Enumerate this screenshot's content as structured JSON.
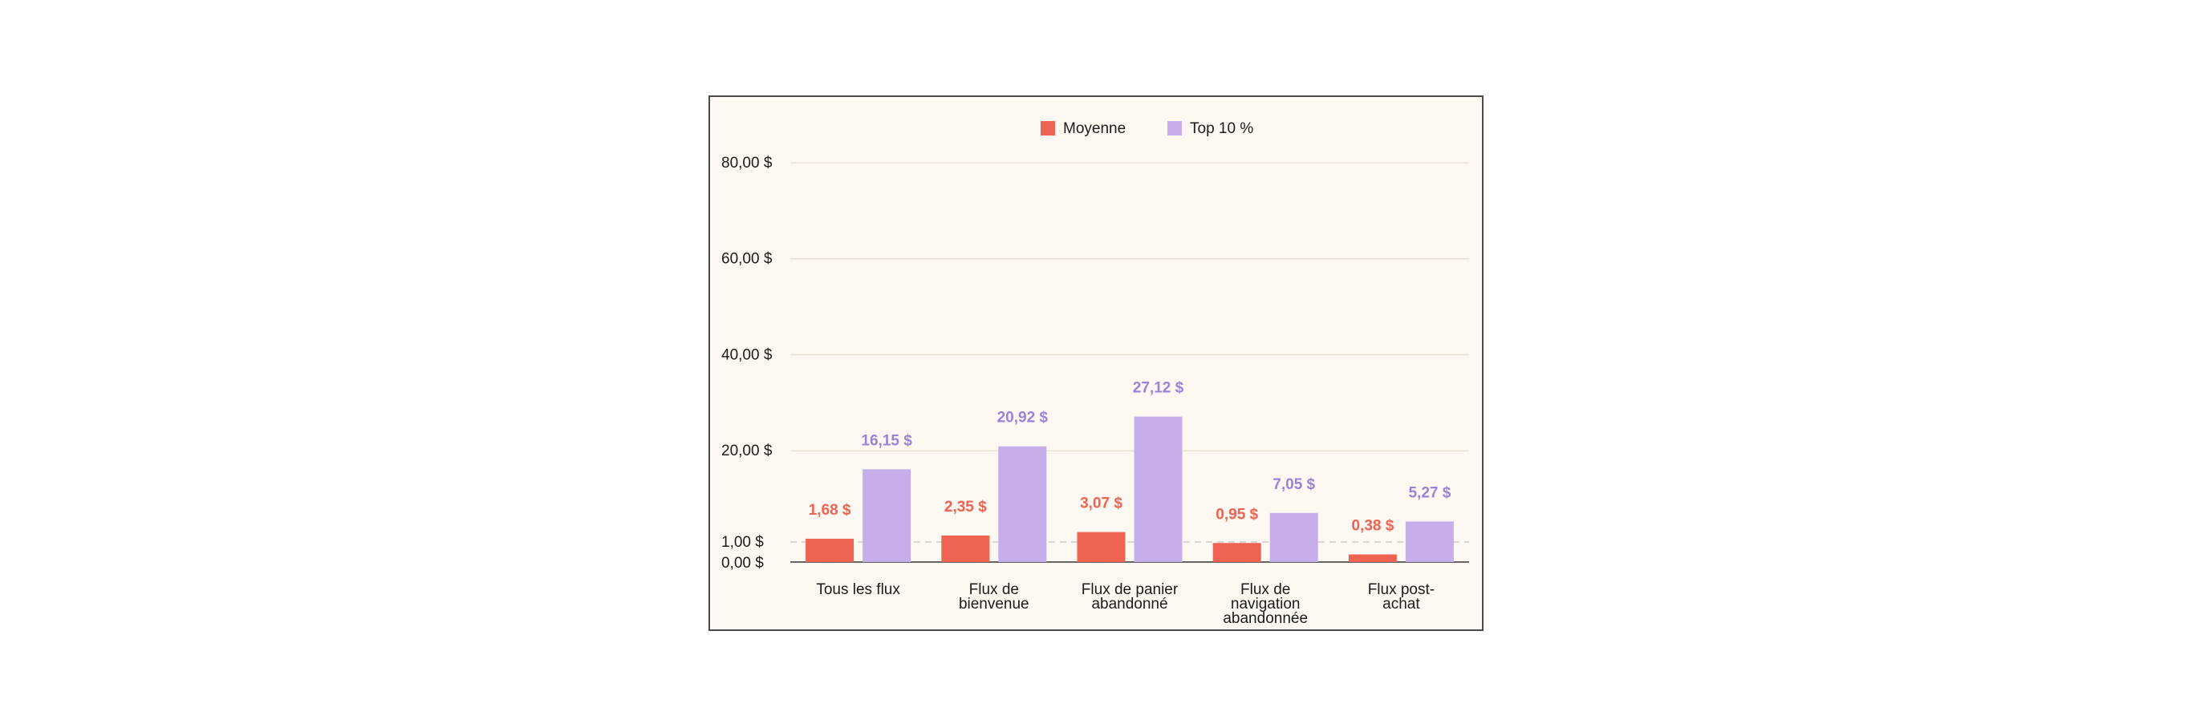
{
  "chart_data": {
    "type": "bar",
    "categories": [
      [
        "Tous les flux"
      ],
      [
        "Flux de",
        "bienvenue"
      ],
      [
        "Flux de panier",
        "abandonné"
      ],
      [
        "Flux de",
        "navigation",
        "abandonnée"
      ],
      [
        "Flux post-",
        "achat"
      ]
    ],
    "series": [
      {
        "name": "Moyenne",
        "color": "#ee6352",
        "values": [
          1.68,
          2.35,
          3.07,
          0.95,
          0.38
        ],
        "labels": [
          "1,68 $",
          "2,35 $",
          "3,07 $",
          "0,95 $",
          "0,38 $"
        ]
      },
      {
        "name": "Top 10 %",
        "color": "#c5aeea",
        "label_color": "#9b82d9",
        "values": [
          16.15,
          20.92,
          27.12,
          7.05,
          5.27
        ],
        "labels": [
          "16,15 $",
          "20,92 $",
          "27,12 $",
          "7,05 $",
          "5,27 $"
        ]
      }
    ],
    "y_ticks": [
      {
        "value": 0,
        "label": "0,00 $"
      },
      {
        "value": 1,
        "label": "1,00 $"
      },
      {
        "value": 20,
        "label": "20,00 $"
      },
      {
        "value": 40,
        "label": "40,00 $"
      },
      {
        "value": 60,
        "label": "60,00 $"
      },
      {
        "value": 80,
        "label": "80,00 $"
      }
    ],
    "ylim": [
      0,
      80
    ],
    "legend_position": "top-center",
    "grid": true,
    "reference_line": {
      "value": 1,
      "style": "dashed"
    }
  }
}
